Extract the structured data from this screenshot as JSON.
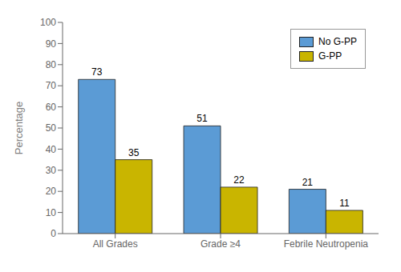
{
  "chart_data": {
    "type": "bar",
    "categories": [
      "All Grades",
      "Grade ≥4",
      "Febrile Neutropenia"
    ],
    "series": [
      {
        "name": "No G-PP",
        "color": "#5b9bd5",
        "values": [
          73,
          51,
          21
        ]
      },
      {
        "name": "G-PP",
        "color": "#c9b500",
        "values": [
          35,
          22,
          11
        ]
      }
    ],
    "ylabel": "Percentage",
    "ylim": [
      0,
      100
    ],
    "yticks": [
      0,
      10,
      20,
      30,
      40,
      50,
      60,
      70,
      80,
      90,
      100
    ],
    "legend": "upper right",
    "data_labels": true,
    "grid": false
  }
}
